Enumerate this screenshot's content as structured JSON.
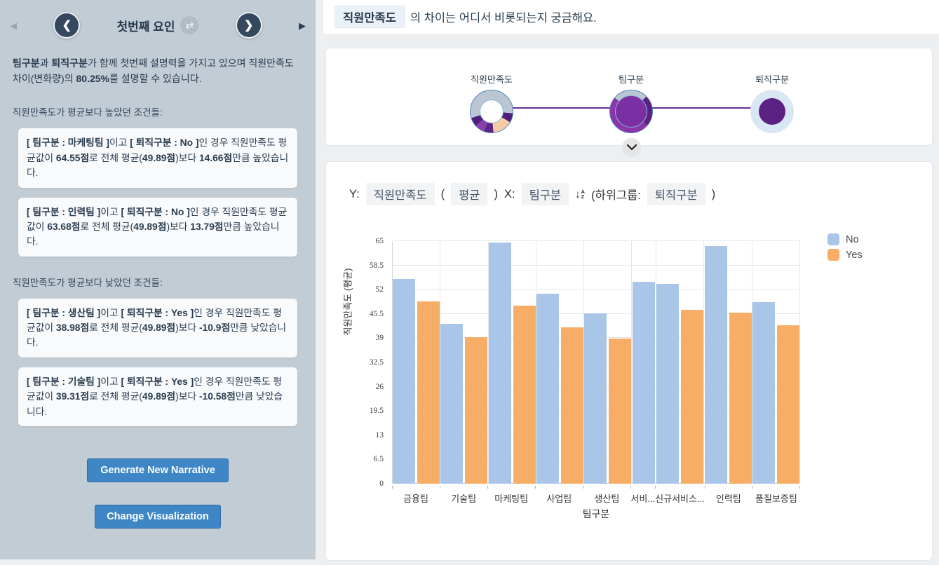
{
  "sidebar": {
    "title": "첫번째 요인",
    "summary_parts": [
      {
        "t": "팀구분",
        "b": true
      },
      {
        "t": "과 ",
        "b": false
      },
      {
        "t": "퇴직구분",
        "b": true
      },
      {
        "t": "가 함께 첫번째 설명력을 가지고 있으며 직원만족도 차이(변화량)의 ",
        "b": false
      },
      {
        "t": "80.25%",
        "b": true
      },
      {
        "t": "를 설명할 수 있습니다.",
        "b": false
      }
    ],
    "high_section_label": "직원만족도가 평균보다 높았던 조건들:",
    "low_section_label": "직원만족도가 평균보다 낮았던 조건들:",
    "conditions": [
      {
        "group": "high",
        "parts": [
          {
            "t": "[ 팀구분 : 마케팅팀 ]",
            "b": true
          },
          {
            "t": "이고 ",
            "b": false
          },
          {
            "t": "[ 퇴직구분 : No ]",
            "b": true
          },
          {
            "t": "인 경우 직원만족도 평균값이 ",
            "b": false
          },
          {
            "t": "64.55점",
            "b": true
          },
          {
            "t": "로 전체 평균(",
            "b": false
          },
          {
            "t": "49.89점",
            "b": true
          },
          {
            "t": ")보다 ",
            "b": false
          },
          {
            "t": "14.66점",
            "b": true
          },
          {
            "t": "만큼 높았습니다.",
            "b": false
          }
        ]
      },
      {
        "group": "high",
        "parts": [
          {
            "t": "[ 팀구분 : 인력팀 ]",
            "b": true
          },
          {
            "t": "이고 ",
            "b": false
          },
          {
            "t": "[ 퇴직구분 : No ]",
            "b": true
          },
          {
            "t": "인 경우 직원만족도 평균값이 ",
            "b": false
          },
          {
            "t": "63.68점",
            "b": true
          },
          {
            "t": "로 전체 평균(",
            "b": false
          },
          {
            "t": "49.89점",
            "b": true
          },
          {
            "t": ")보다 ",
            "b": false
          },
          {
            "t": "13.79점",
            "b": true
          },
          {
            "t": "만큼 높았습니다.",
            "b": false
          }
        ]
      },
      {
        "group": "low",
        "parts": [
          {
            "t": "[ 팀구분 : 생산팀 ]",
            "b": true
          },
          {
            "t": "이고 ",
            "b": false
          },
          {
            "t": "[ 퇴직구분 : Yes ]",
            "b": true
          },
          {
            "t": "인 경우 직원만족도 평균값이 ",
            "b": false
          },
          {
            "t": "38.98점",
            "b": true
          },
          {
            "t": "로 전체 평균(",
            "b": false
          },
          {
            "t": "49.89점",
            "b": true
          },
          {
            "t": ")보다 ",
            "b": false
          },
          {
            "t": "-10.9점",
            "b": true
          },
          {
            "t": "만큼 낮았습니다.",
            "b": false
          }
        ]
      },
      {
        "group": "low",
        "parts": [
          {
            "t": "[ 팀구분 : 기술팀 ]",
            "b": true
          },
          {
            "t": "이고 ",
            "b": false
          },
          {
            "t": "[ 퇴직구분 : Yes ]",
            "b": true
          },
          {
            "t": "인 경우 직원만족도 평균값이 ",
            "b": false
          },
          {
            "t": "39.31점",
            "b": true
          },
          {
            "t": "로 전체 평균(",
            "b": false
          },
          {
            "t": "49.89점",
            "b": true
          },
          {
            "t": ")보다 ",
            "b": false
          },
          {
            "t": "-10.58점",
            "b": true
          },
          {
            "t": "만큼 낮았습니다.",
            "b": false
          }
        ]
      }
    ],
    "buttons": {
      "generate": "Generate New Narrative",
      "change": "Change Visualization"
    }
  },
  "question": {
    "variable_chip": "직원만족도",
    "text": "의 차이는 어디서 비롯되는지 궁금해요."
  },
  "flow": {
    "nodes": [
      {
        "label": "직원만족도"
      },
      {
        "label": "팀구분"
      },
      {
        "label": "퇴직구분"
      }
    ]
  },
  "chart_header": {
    "y_prefix": "Y:",
    "y_chip": "직원만족도",
    "open_paren": "(",
    "agg_chip": "평균",
    "close_paren": ")",
    "x_prefix": "X:",
    "x_chip": "팀구분",
    "sort_a": "A",
    "sort_z": "Z",
    "sort_arrow": "↓",
    "subgroup_prefix": "(하위그룹:",
    "subgroup_chip": "퇴직구분",
    "subgroup_close": ")"
  },
  "chart_data": {
    "type": "bar",
    "title": "",
    "xlabel": "팀구분",
    "ylabel": "직원만족도 (평균)",
    "ylim": [
      0,
      65
    ],
    "yticks": [
      0,
      6.5,
      13,
      19.5,
      26,
      32.5,
      39,
      45.5,
      52,
      58.5,
      65
    ],
    "grid": true,
    "legend_position": "right",
    "categories": [
      "금융팀",
      "기술팀",
      "마케팅팀",
      "사업팀",
      "생산팀",
      "서비...",
      "신규서비스...",
      "인력팀",
      "품질보증팀"
    ],
    "series": [
      {
        "name": "No",
        "color": "#a9c6e8",
        "values": [
          54.9,
          42.9,
          64.55,
          51.0,
          45.7,
          54.2,
          53.6,
          63.68,
          48.7
        ]
      },
      {
        "name": "Yes",
        "color": "#f8ad66",
        "values": [
          48.9,
          39.31,
          47.8,
          41.9,
          38.98,
          null,
          46.5,
          45.9,
          42.4
        ]
      }
    ]
  },
  "colors": {
    "sidebar_bg": "#c2ccd4",
    "accent_navy": "#34495e",
    "button_blue": "#3e86c6",
    "flow_purple": "#6b2e8f",
    "donut_slate": "#bac7d3",
    "donut_peach": "#f6cba4",
    "donut_purple_dark": "#4f1d7a",
    "donut_purple": "#8b35a8",
    "pale_ring": "#d9e6f4",
    "bar_no": "#a9c6e8",
    "bar_yes": "#f8ad66"
  }
}
